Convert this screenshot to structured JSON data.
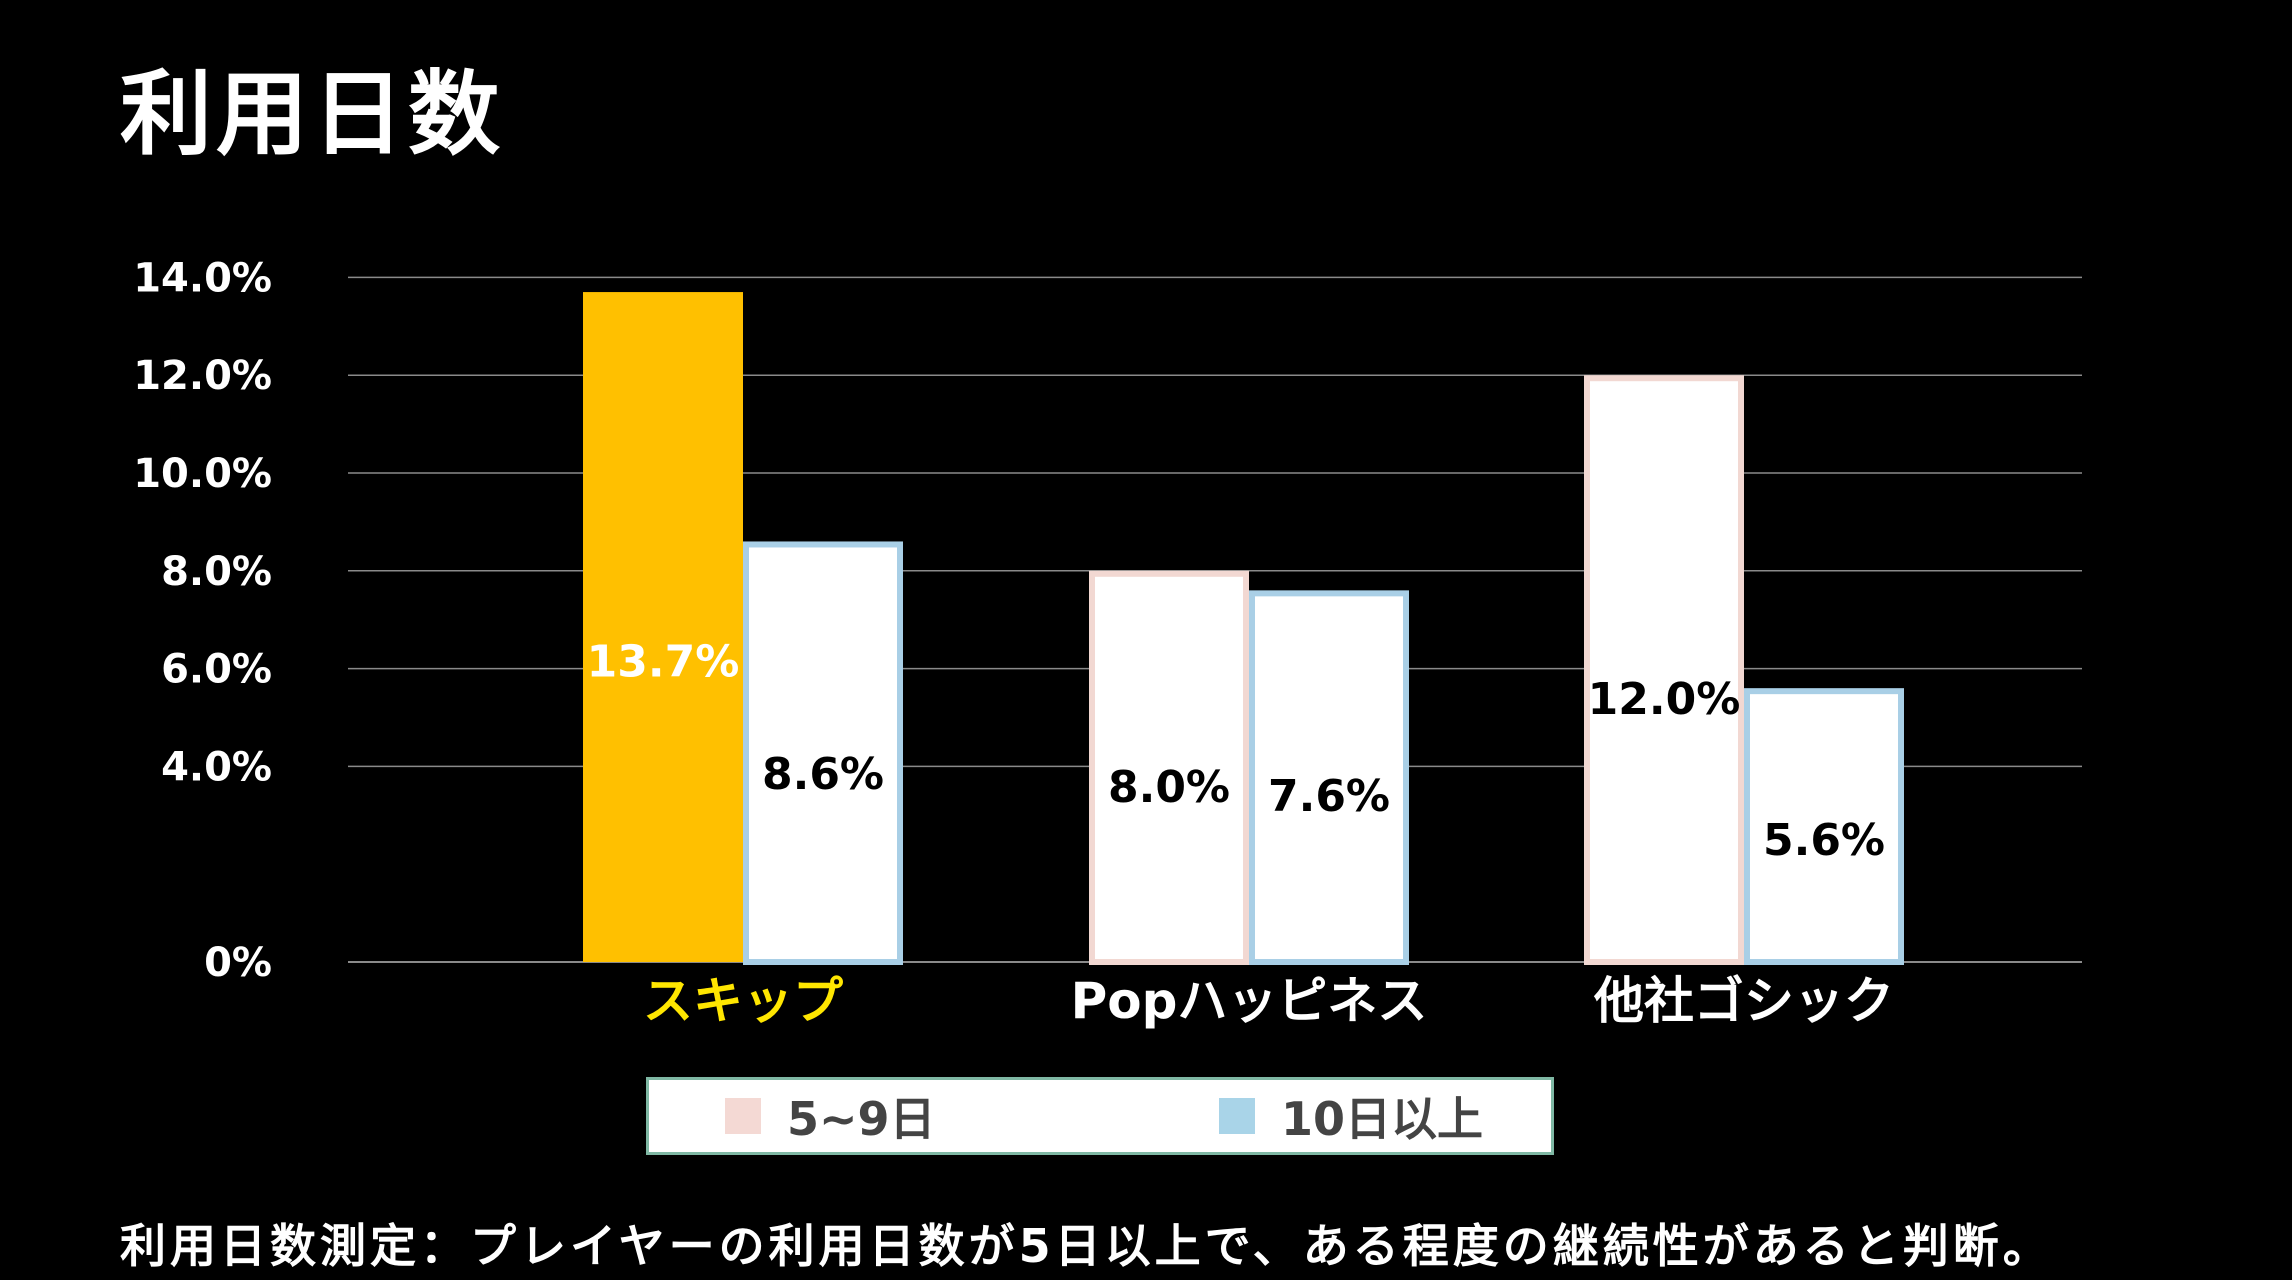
{
  "title": "利用日数",
  "footnote": "利用日数測定：プレイヤーの利用日数が5日以上で、ある程度の継続性があると判断。",
  "colors": {
    "highlight_fill": "#ffc000",
    "highlight_label": "#ffe600",
    "series_a_border": "#f2d8d2",
    "series_b_border": "#a9cfe6",
    "legend_swatch_a": "#f4d9d4",
    "legend_swatch_b": "#a9d4e8",
    "grid": "#8a8a8a",
    "text": "#ffffff"
  },
  "chart_data": {
    "type": "bar",
    "categories": [
      "スキップ",
      "Popハッピネス",
      "他社ゴシック"
    ],
    "highlight_category": "スキップ",
    "series": [
      {
        "name": "5~9日",
        "values": [
          13.7,
          8.0,
          12.0
        ],
        "labels": [
          "13.7%",
          "8.0%",
          "12.0%"
        ]
      },
      {
        "name": "10日以上",
        "values": [
          8.6,
          7.6,
          5.6
        ],
        "labels": [
          "8.6%",
          "7.6%",
          "5.6%"
        ]
      }
    ],
    "y_ticks": [
      0,
      4,
      6,
      8,
      10,
      12,
      14
    ],
    "y_tick_labels": [
      "0%",
      "4.0%",
      "6.0%",
      "8.0%",
      "10.0%",
      "12.0%",
      "14.0%"
    ],
    "ylim": [
      0,
      14
    ],
    "grid": true,
    "legend_position": "bottom"
  }
}
